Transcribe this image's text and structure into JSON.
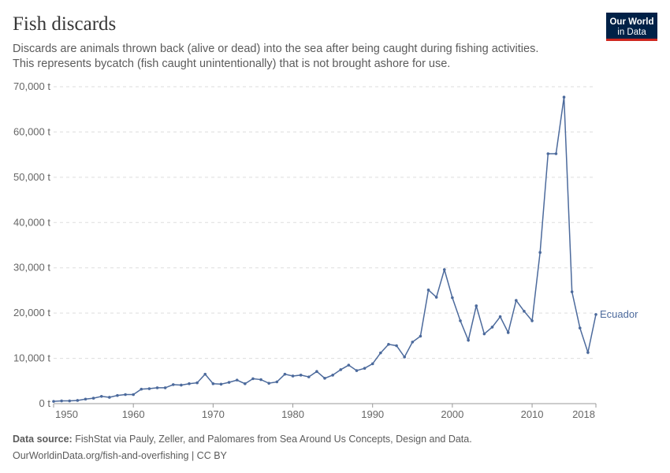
{
  "chart_data": {
    "type": "line",
    "title": "Fish discards",
    "subtitle": [
      "Discards are animals thrown back (alive or dead) into the sea after being caught during fishing activities.",
      "This represents bycatch (fish caught unintentionally) that is not brought ashore for use."
    ],
    "x": [
      1950,
      1951,
      1952,
      1953,
      1954,
      1955,
      1956,
      1957,
      1958,
      1959,
      1960,
      1961,
      1962,
      1963,
      1964,
      1965,
      1966,
      1967,
      1968,
      1969,
      1970,
      1971,
      1972,
      1973,
      1974,
      1975,
      1976,
      1977,
      1978,
      1979,
      1980,
      1981,
      1982,
      1983,
      1984,
      1985,
      1986,
      1987,
      1988,
      1989,
      1990,
      1991,
      1992,
      1993,
      1994,
      1995,
      1996,
      1997,
      1998,
      1999,
      2000,
      2001,
      2002,
      2003,
      2004,
      2005,
      2006,
      2007,
      2008,
      2009,
      2010,
      2011,
      2012,
      2013,
      2014,
      2015,
      2016,
      2017,
      2018
    ],
    "series": [
      {
        "name": "Ecuador",
        "color": "#4c6a9c",
        "values": [
          500,
          600,
          600,
          700,
          1000,
          1200,
          1600,
          1400,
          1800,
          2000,
          2000,
          3200,
          3300,
          3500,
          3500,
          4200,
          4100,
          4400,
          4600,
          6500,
          4400,
          4300,
          4700,
          5200,
          4400,
          5500,
          5300,
          4500,
          4800,
          6500,
          6100,
          6300,
          5900,
          7100,
          5600,
          6300,
          7500,
          8500,
          7300,
          7800,
          8800,
          11200,
          13100,
          12800,
          10300,
          13600,
          14900,
          25100,
          23500,
          29600,
          23400,
          18300,
          14000,
          21600,
          15400,
          16900,
          19200,
          15700,
          22800,
          20400,
          18300,
          33400,
          55200,
          55200,
          67700,
          24700,
          16700,
          11300,
          19700
        ]
      }
    ],
    "xlim": [
      1950,
      2018
    ],
    "xticks": [
      1950,
      1960,
      1970,
      1980,
      1990,
      2000,
      2010,
      2018
    ],
    "ylim": [
      0,
      70000
    ],
    "yticks": [
      {
        "value": 0,
        "label": "0 t"
      },
      {
        "value": 10000,
        "label": "10,000 t"
      },
      {
        "value": 20000,
        "label": "20,000 t"
      },
      {
        "value": 30000,
        "label": "30,000 t"
      },
      {
        "value": 40000,
        "label": "40,000 t"
      },
      {
        "value": 50000,
        "label": "50,000 t"
      },
      {
        "value": 60000,
        "label": "60,000 t"
      },
      {
        "value": 70000,
        "label": "70,000 t"
      }
    ],
    "grid": true
  },
  "logo": [
    "Our World",
    "in Data"
  ],
  "footer": {
    "source_label": "Data source:",
    "source": "FishStat via Pauly, Zeller, and Palomares from Sea Around Us Concepts, Design and Data.",
    "url": "OurWorldinData.org/fish-and-overfishing | CC BY"
  }
}
